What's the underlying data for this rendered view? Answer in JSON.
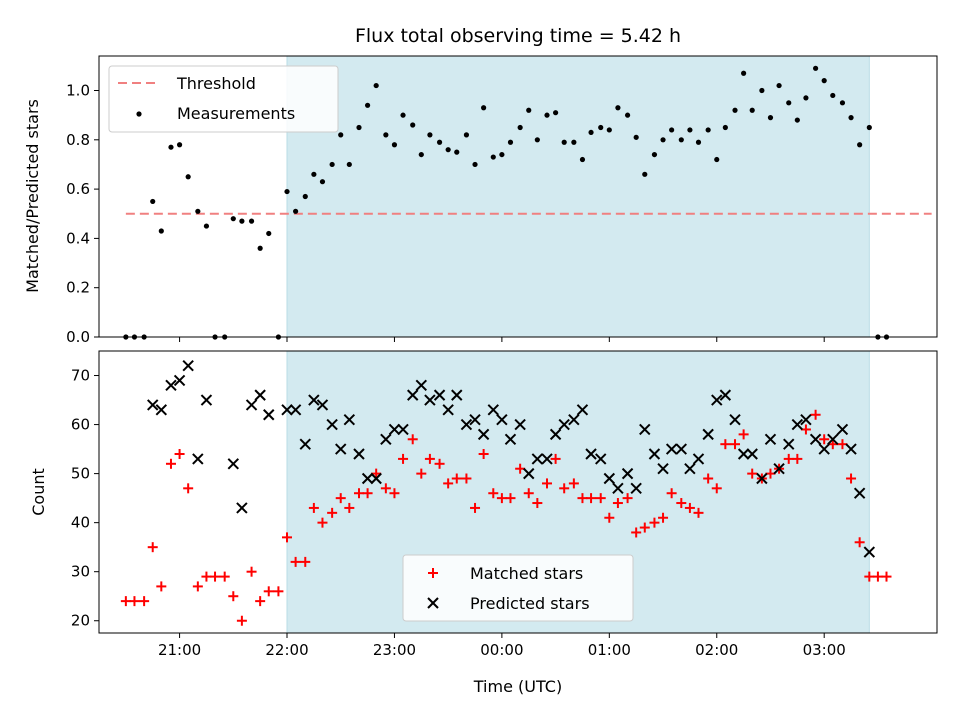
{
  "chart_data": [
    {
      "type": "scatter",
      "title": "Flux total observing time = 5.42 h",
      "ylabel": "Matched/Predicted stars",
      "xlabel": "",
      "x_unit": "hours",
      "xlim": [
        20.25,
        28.05
      ],
      "ylim": [
        0,
        1.14
      ],
      "yticks": [
        0.0,
        0.2,
        0.4,
        0.6,
        0.8,
        1.0
      ],
      "ytick_labels": [
        "0.0",
        "0.2",
        "0.4",
        "0.6",
        "0.8",
        "1.0"
      ],
      "shaded_interval": [
        22.0,
        27.42
      ],
      "shade_color": "#d3eaf0",
      "legend": {
        "position": "upper-left",
        "entries": [
          "Threshold",
          "Measurements"
        ]
      },
      "threshold": {
        "name": "Threshold",
        "y": 0.5,
        "x_range": [
          20.5,
          28.0
        ],
        "color": "#f08080",
        "style": "dashed"
      },
      "series": [
        {
          "name": "Measurements",
          "marker": "dot",
          "color": "#000000",
          "points": [
            [
              20.5,
              0.0
            ],
            [
              20.58,
              0.0
            ],
            [
              20.67,
              0.0
            ],
            [
              20.75,
              0.55
            ],
            [
              20.83,
              0.43
            ],
            [
              20.92,
              0.77
            ],
            [
              21.0,
              0.78
            ],
            [
              21.08,
              0.65
            ],
            [
              21.17,
              0.51
            ],
            [
              21.25,
              0.45
            ],
            [
              21.33,
              0.0
            ],
            [
              21.42,
              0.0
            ],
            [
              21.5,
              0.48
            ],
            [
              21.58,
              0.47
            ],
            [
              21.67,
              0.47
            ],
            [
              21.75,
              0.36
            ],
            [
              21.83,
              0.42
            ],
            [
              21.92,
              0.0
            ],
            [
              22.0,
              0.59
            ],
            [
              22.08,
              0.51
            ],
            [
              22.17,
              0.57
            ],
            [
              22.25,
              0.66
            ],
            [
              22.33,
              0.63
            ],
            [
              22.42,
              0.7
            ],
            [
              22.5,
              0.82
            ],
            [
              22.58,
              0.7
            ],
            [
              22.67,
              0.85
            ],
            [
              22.75,
              0.94
            ],
            [
              22.83,
              1.02
            ],
            [
              22.92,
              0.82
            ],
            [
              23.0,
              0.78
            ],
            [
              23.08,
              0.9
            ],
            [
              23.17,
              0.86
            ],
            [
              23.25,
              0.74
            ],
            [
              23.33,
              0.82
            ],
            [
              23.42,
              0.79
            ],
            [
              23.5,
              0.76
            ],
            [
              23.58,
              0.75
            ],
            [
              23.67,
              0.82
            ],
            [
              23.75,
              0.7
            ],
            [
              23.83,
              0.93
            ],
            [
              23.92,
              0.73
            ],
            [
              24.0,
              0.74
            ],
            [
              24.08,
              0.79
            ],
            [
              24.17,
              0.85
            ],
            [
              24.25,
              0.92
            ],
            [
              24.33,
              0.8
            ],
            [
              24.42,
              0.9
            ],
            [
              24.5,
              0.91
            ],
            [
              24.58,
              0.79
            ],
            [
              24.67,
              0.79
            ],
            [
              24.75,
              0.72
            ],
            [
              24.83,
              0.83
            ],
            [
              24.92,
              0.85
            ],
            [
              25.0,
              0.84
            ],
            [
              25.08,
              0.93
            ],
            [
              25.17,
              0.9
            ],
            [
              25.25,
              0.81
            ],
            [
              25.33,
              0.66
            ],
            [
              25.42,
              0.74
            ],
            [
              25.5,
              0.8
            ],
            [
              25.58,
              0.84
            ],
            [
              25.67,
              0.8
            ],
            [
              25.75,
              0.84
            ],
            [
              25.83,
              0.79
            ],
            [
              25.92,
              0.84
            ],
            [
              26.0,
              0.72
            ],
            [
              26.08,
              0.85
            ],
            [
              26.17,
              0.92
            ],
            [
              26.25,
              1.07
            ],
            [
              26.33,
              0.92
            ],
            [
              26.42,
              1.0
            ],
            [
              26.5,
              0.89
            ],
            [
              26.58,
              1.02
            ],
            [
              26.67,
              0.95
            ],
            [
              26.75,
              0.88
            ],
            [
              26.83,
              0.97
            ],
            [
              26.92,
              1.09
            ],
            [
              27.0,
              1.04
            ],
            [
              27.08,
              0.98
            ],
            [
              27.17,
              0.95
            ],
            [
              27.25,
              0.89
            ],
            [
              27.33,
              0.78
            ],
            [
              27.42,
              0.85
            ],
            [
              27.5,
              0.0
            ],
            [
              27.58,
              0.0
            ]
          ]
        }
      ]
    },
    {
      "type": "scatter",
      "title": "",
      "ylabel": "Count",
      "xlabel": "Time (UTC)",
      "x_unit": "hours",
      "xlim": [
        20.25,
        28.05
      ],
      "ylim": [
        17.5,
        75
      ],
      "yticks": [
        20,
        30,
        40,
        50,
        60,
        70
      ],
      "ytick_labels": [
        "20",
        "30",
        "40",
        "50",
        "60",
        "70"
      ],
      "xticks": [
        21,
        22,
        23,
        24,
        25,
        26,
        27
      ],
      "xtick_labels": [
        "21:00",
        "22:00",
        "23:00",
        "00:00",
        "01:00",
        "02:00",
        "03:00"
      ],
      "shaded_interval": [
        22.0,
        27.42
      ],
      "shade_color": "#d3eaf0",
      "legend": {
        "position": "lower-center",
        "entries": [
          "Matched stars",
          "Predicted stars"
        ]
      },
      "series": [
        {
          "name": "Matched stars",
          "marker": "plus",
          "color": "#ff0000",
          "points": [
            [
              20.5,
              24
            ],
            [
              20.58,
              24
            ],
            [
              20.67,
              24
            ],
            [
              20.75,
              35
            ],
            [
              20.83,
              27
            ],
            [
              20.92,
              52
            ],
            [
              21.0,
              54
            ],
            [
              21.08,
              47
            ],
            [
              21.17,
              27
            ],
            [
              21.25,
              29
            ],
            [
              21.33,
              29
            ],
            [
              21.42,
              29
            ],
            [
              21.5,
              25
            ],
            [
              21.58,
              20
            ],
            [
              21.67,
              30
            ],
            [
              21.75,
              24
            ],
            [
              21.83,
              26
            ],
            [
              21.92,
              26
            ],
            [
              22.0,
              37
            ],
            [
              22.08,
              32
            ],
            [
              22.17,
              32
            ],
            [
              22.25,
              43
            ],
            [
              22.33,
              40
            ],
            [
              22.42,
              42
            ],
            [
              22.5,
              45
            ],
            [
              22.58,
              43
            ],
            [
              22.67,
              46
            ],
            [
              22.75,
              46
            ],
            [
              22.83,
              50
            ],
            [
              22.92,
              47
            ],
            [
              23.0,
              46
            ],
            [
              23.08,
              53
            ],
            [
              23.17,
              57
            ],
            [
              23.25,
              50
            ],
            [
              23.33,
              53
            ],
            [
              23.42,
              52
            ],
            [
              23.5,
              48
            ],
            [
              23.58,
              49
            ],
            [
              23.67,
              49
            ],
            [
              23.75,
              43
            ],
            [
              23.83,
              54
            ],
            [
              23.92,
              46
            ],
            [
              24.0,
              45
            ],
            [
              24.08,
              45
            ],
            [
              24.17,
              51
            ],
            [
              24.25,
              46
            ],
            [
              24.33,
              44
            ],
            [
              24.42,
              48
            ],
            [
              24.5,
              53
            ],
            [
              24.58,
              47
            ],
            [
              24.67,
              48
            ],
            [
              24.75,
              45
            ],
            [
              24.83,
              45
            ],
            [
              24.92,
              45
            ],
            [
              25.0,
              41
            ],
            [
              25.08,
              44
            ],
            [
              25.17,
              45
            ],
            [
              25.25,
              38
            ],
            [
              25.33,
              39
            ],
            [
              25.42,
              40
            ],
            [
              25.5,
              41
            ],
            [
              25.58,
              46
            ],
            [
              25.67,
              44
            ],
            [
              25.75,
              43
            ],
            [
              25.83,
              42
            ],
            [
              25.92,
              49
            ],
            [
              26.0,
              47
            ],
            [
              26.08,
              56
            ],
            [
              26.17,
              56
            ],
            [
              26.25,
              58
            ],
            [
              26.33,
              50
            ],
            [
              26.42,
              49
            ],
            [
              26.5,
              50
            ],
            [
              26.58,
              51
            ],
            [
              26.67,
              53
            ],
            [
              26.75,
              53
            ],
            [
              26.83,
              59
            ],
            [
              26.92,
              62
            ],
            [
              27.0,
              57
            ],
            [
              27.08,
              56
            ],
            [
              27.17,
              56
            ],
            [
              27.25,
              49
            ],
            [
              27.33,
              36
            ],
            [
              27.42,
              29
            ],
            [
              27.5,
              29
            ],
            [
              27.58,
              29
            ]
          ]
        },
        {
          "name": "Predicted stars",
          "marker": "x",
          "color": "#000000",
          "points": [
            [
              20.75,
              64
            ],
            [
              20.83,
              63
            ],
            [
              20.92,
              68
            ],
            [
              21.0,
              69
            ],
            [
              21.08,
              72
            ],
            [
              21.17,
              53
            ],
            [
              21.25,
              65
            ],
            [
              21.5,
              52
            ],
            [
              21.58,
              43
            ],
            [
              21.67,
              64
            ],
            [
              21.75,
              66
            ],
            [
              21.83,
              62
            ],
            [
              22.0,
              63
            ],
            [
              22.08,
              63
            ],
            [
              22.17,
              56
            ],
            [
              22.25,
              65
            ],
            [
              22.33,
              64
            ],
            [
              22.42,
              60
            ],
            [
              22.5,
              55
            ],
            [
              22.58,
              61
            ],
            [
              22.67,
              54
            ],
            [
              22.75,
              49
            ],
            [
              22.83,
              49
            ],
            [
              22.92,
              57
            ],
            [
              23.0,
              59
            ],
            [
              23.08,
              59
            ],
            [
              23.17,
              66
            ],
            [
              23.25,
              68
            ],
            [
              23.33,
              65
            ],
            [
              23.42,
              66
            ],
            [
              23.5,
              63
            ],
            [
              23.58,
              66
            ],
            [
              23.67,
              60
            ],
            [
              23.75,
              61
            ],
            [
              23.83,
              58
            ],
            [
              23.92,
              63
            ],
            [
              24.0,
              61
            ],
            [
              24.08,
              57
            ],
            [
              24.17,
              60
            ],
            [
              24.25,
              50
            ],
            [
              24.33,
              53
            ],
            [
              24.42,
              53
            ],
            [
              24.5,
              58
            ],
            [
              24.58,
              60
            ],
            [
              24.67,
              61
            ],
            [
              24.75,
              63
            ],
            [
              24.83,
              54
            ],
            [
              24.92,
              53
            ],
            [
              25.0,
              49
            ],
            [
              25.08,
              47
            ],
            [
              25.17,
              50
            ],
            [
              25.25,
              47
            ],
            [
              25.33,
              59
            ],
            [
              25.42,
              54
            ],
            [
              25.5,
              51
            ],
            [
              25.58,
              55
            ],
            [
              25.67,
              55
            ],
            [
              25.75,
              51
            ],
            [
              25.83,
              53
            ],
            [
              25.92,
              58
            ],
            [
              26.0,
              65
            ],
            [
              26.08,
              66
            ],
            [
              26.17,
              61
            ],
            [
              26.25,
              54
            ],
            [
              26.33,
              54
            ],
            [
              26.42,
              49
            ],
            [
              26.5,
              57
            ],
            [
              26.58,
              51
            ],
            [
              26.67,
              56
            ],
            [
              26.75,
              60
            ],
            [
              26.83,
              61
            ],
            [
              26.92,
              57
            ],
            [
              27.0,
              55
            ],
            [
              27.08,
              57
            ],
            [
              27.17,
              59
            ],
            [
              27.25,
              55
            ],
            [
              27.33,
              46
            ],
            [
              27.42,
              34
            ]
          ]
        }
      ]
    }
  ]
}
